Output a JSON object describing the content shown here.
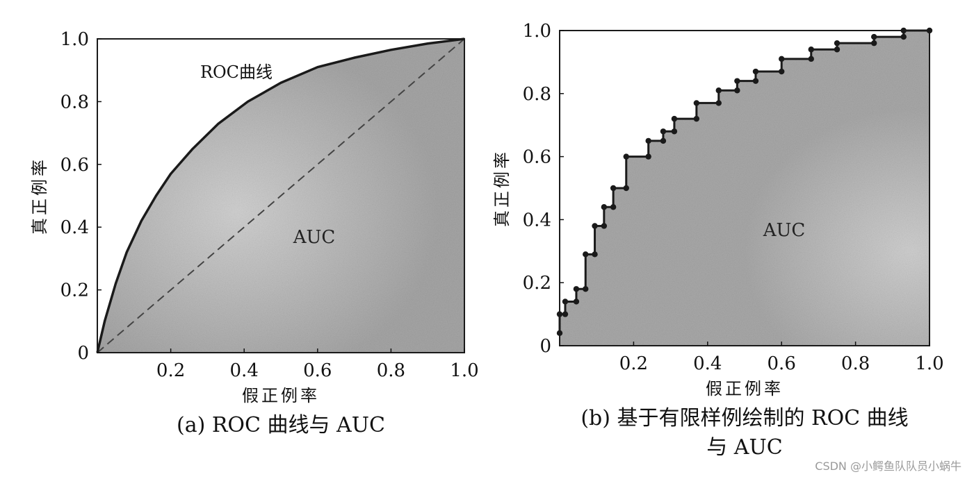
{
  "chart_data": [
    {
      "type": "area",
      "caption": "(a) ROC 曲线与 AUC",
      "xlabel": "假正例率",
      "ylabel": "真正例率",
      "xlim": [
        0,
        1
      ],
      "ylim": [
        0,
        1
      ],
      "x_ticks": [
        "0.2",
        "0.4",
        "0.6",
        "0.8",
        "1.0"
      ],
      "y_ticks": [
        "0",
        "0.2",
        "0.4",
        "0.6",
        "0.8",
        "1.0"
      ],
      "area_label": "AUC",
      "curve_label": "ROC曲线",
      "series": [
        {
          "name": "ROC曲线",
          "x": [
            0,
            0.02,
            0.05,
            0.08,
            0.12,
            0.16,
            0.2,
            0.26,
            0.33,
            0.41,
            0.5,
            0.6,
            0.7,
            0.8,
            0.9,
            1.0
          ],
          "y": [
            0,
            0.1,
            0.22,
            0.32,
            0.42,
            0.5,
            0.57,
            0.65,
            0.73,
            0.8,
            0.86,
            0.91,
            0.94,
            0.965,
            0.985,
            1.0
          ]
        },
        {
          "name": "",
          "style": "dashed",
          "x": [
            0,
            1
          ],
          "y": [
            0,
            1
          ]
        }
      ],
      "grid": false,
      "legend": "none"
    },
    {
      "type": "area",
      "caption_lines": [
        "(b) 基于有限样例绘制的 ROC 曲线",
        "与 AUC"
      ],
      "xlabel": "假正例率",
      "ylabel": "真正例率",
      "xlim": [
        0,
        1
      ],
      "ylim": [
        0,
        1
      ],
      "x_ticks": [
        "0.2",
        "0.4",
        "0.6",
        "0.8",
        "1.0"
      ],
      "y_ticks": [
        "0",
        "0.2",
        "0.4",
        "0.6",
        "0.8",
        "1.0"
      ],
      "area_label": "AUC",
      "series": [
        {
          "name": "",
          "style": "step",
          "x": [
            0,
            0,
            0.015,
            0.015,
            0.045,
            0.045,
            0.07,
            0.07,
            0.095,
            0.095,
            0.12,
            0.12,
            0.145,
            0.145,
            0.18,
            0.18,
            0.24,
            0.24,
            0.28,
            0.28,
            0.31,
            0.31,
            0.37,
            0.37,
            0.43,
            0.43,
            0.48,
            0.48,
            0.53,
            0.53,
            0.6,
            0.6,
            0.68,
            0.68,
            0.75,
            0.75,
            0.85,
            0.85,
            0.93,
            0.93,
            1.0
          ],
          "y": [
            0.04,
            0.1,
            0.1,
            0.14,
            0.14,
            0.18,
            0.18,
            0.29,
            0.29,
            0.38,
            0.38,
            0.44,
            0.44,
            0.5,
            0.5,
            0.6,
            0.6,
            0.65,
            0.65,
            0.68,
            0.68,
            0.72,
            0.72,
            0.77,
            0.77,
            0.81,
            0.81,
            0.84,
            0.84,
            0.87,
            0.87,
            0.91,
            0.91,
            0.94,
            0.94,
            0.96,
            0.96,
            0.98,
            0.98,
            1.0,
            1.0
          ]
        }
      ],
      "grid": false,
      "legend": "none"
    }
  ],
  "watermark": "CSDN @小鳄鱼队队员小蜗牛",
  "colors": {
    "fill": "#a8a8a8",
    "fill_light": "#cfcfcf",
    "line": "#1a1a1a",
    "background": "#ffffff"
  }
}
